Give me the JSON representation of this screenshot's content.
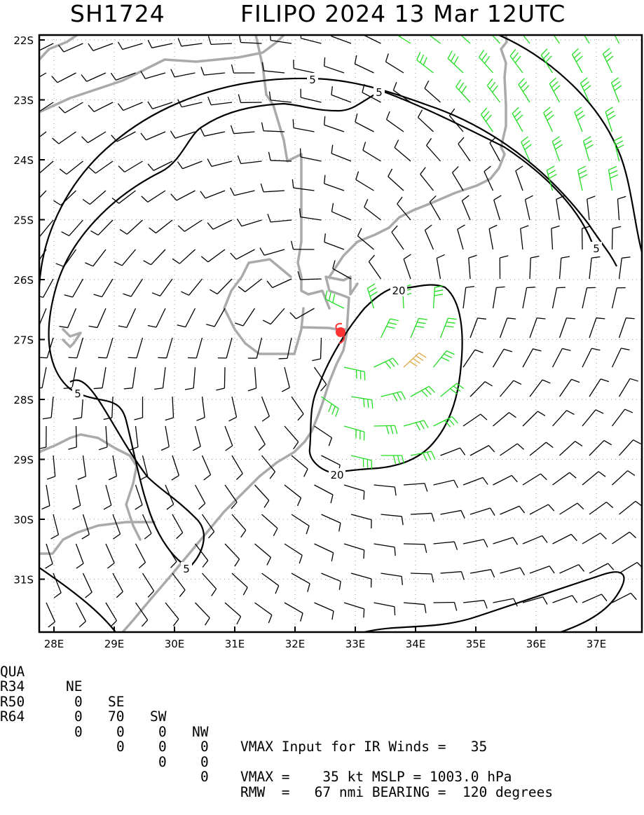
{
  "title": {
    "id": "SH1724",
    "storm": "FILIPO 2024 13 Mar 12UTC"
  },
  "map": {
    "lat_labels": [
      "22S",
      "23S",
      "24S",
      "25S",
      "26S",
      "27S",
      "28S",
      "29S",
      "30S",
      "31S"
    ],
    "lon_labels": [
      "28E",
      "29E",
      "30E",
      "31E",
      "32E",
      "33E",
      "34E",
      "35E",
      "36E",
      "37E"
    ],
    "contour_labels": [
      "5",
      "5",
      "5",
      "5",
      "5",
      "20",
      "20"
    ],
    "center": {
      "lat": -27.0,
      "lon": 32.75
    },
    "colors": {
      "coast": "#aaaaaa",
      "contour": "#000000",
      "barb_low": "#000000",
      "barb_34": "#22dd22",
      "barb_50": "#ddaa44",
      "center": "#ff3333",
      "grid": "#999999"
    }
  },
  "table": {
    "headers": [
      "QUA",
      "NE",
      "SE",
      "SW",
      "NW"
    ],
    "rows": [
      {
        "label": "R34",
        "values": [
          "0",
          "70",
          "0",
          "0"
        ]
      },
      {
        "label": "R50",
        "values": [
          "0",
          "0",
          "0",
          "0"
        ]
      },
      {
        "label": "R64",
        "values": [
          "0",
          "0",
          "0",
          "0"
        ]
      }
    ]
  },
  "info": {
    "vmax_input": "VMAX Input for IR Winds =   35",
    "vmax_line": "VMAX =    35 kt MSLP = 1003.0 hPa",
    "rmw_line": "RMW  =   67 nmi BEARING =  120 degrees"
  }
}
